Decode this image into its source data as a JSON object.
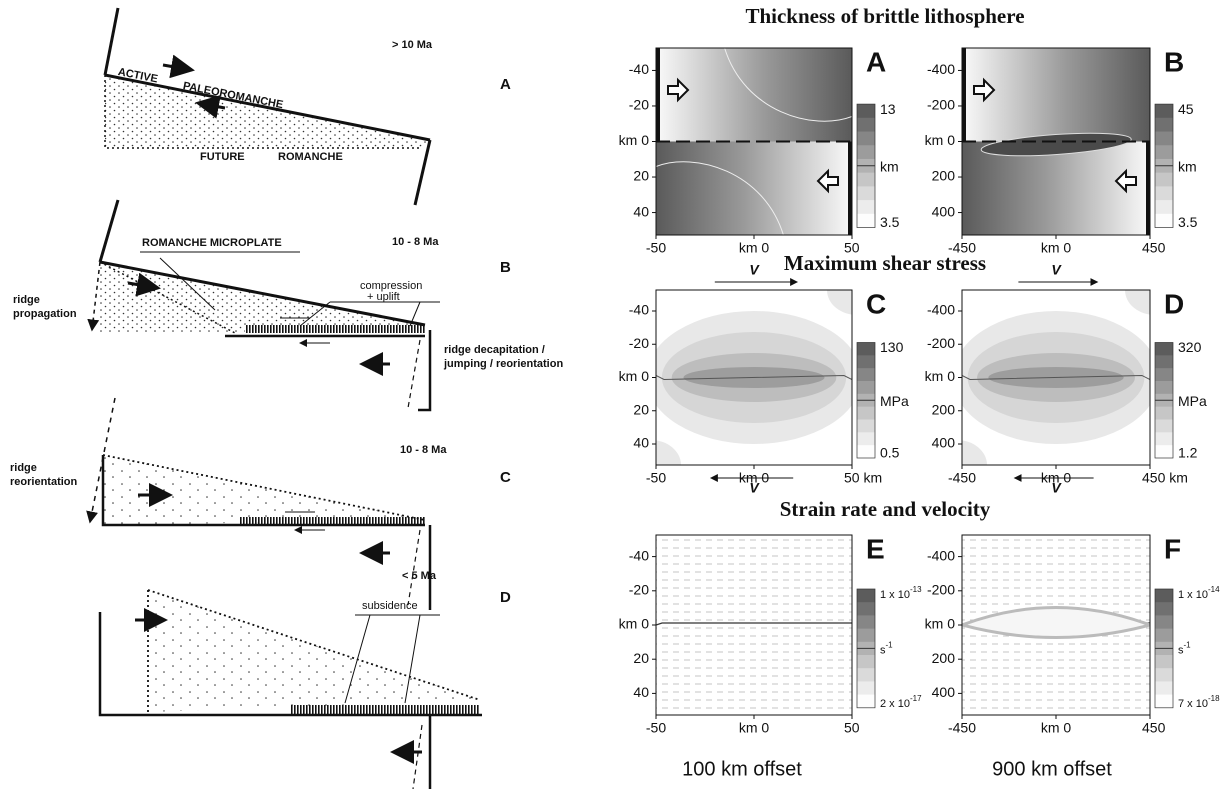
{
  "schematic": {
    "panels": [
      {
        "label": "A",
        "age": "> 10  Ma",
        "notes": [
          "ACTIVE",
          "PALEOROMANCHE",
          "FUTURE",
          "ROMANCHE"
        ]
      },
      {
        "label": "B",
        "age": "10 - 8  Ma",
        "notes": [
          "ROMANCHE MICROPLATE",
          "compression",
          "+ uplift",
          "ridge",
          "propagation",
          "ridge decapitation /",
          "jumping / reorientation"
        ]
      },
      {
        "label": "C",
        "age": "10 - 8  Ma",
        "notes": [
          "ridge",
          "reorientation"
        ]
      },
      {
        "label": "D",
        "age": "< 5  Ma",
        "notes": [
          "subsidence"
        ]
      }
    ]
  },
  "model": {
    "rows": [
      {
        "title": "Thickness of brittle lithosphere"
      },
      {
        "title": "Maximum shear stress"
      },
      {
        "title": "Strain rate and velocity"
      }
    ],
    "arrow_label": "V",
    "plots": [
      {
        "label": "A",
        "yticks": [
          "-40",
          "-20",
          "km 0",
          "20",
          "40"
        ],
        "xticks": [
          "-50",
          "km 0",
          "50"
        ],
        "colorbar": {
          "max": "13",
          "unit": "km",
          "min": "3.5"
        }
      },
      {
        "label": "B",
        "yticks": [
          "-400",
          "-200",
          "km 0",
          "200",
          "400"
        ],
        "xticks": [
          "-450",
          "km 0",
          "450"
        ],
        "colorbar": {
          "max": "45",
          "unit": "km",
          "min": "3.5"
        }
      },
      {
        "label": "C",
        "yticks": [
          "-40",
          "-20",
          "km 0",
          "20",
          "40"
        ],
        "xticks": [
          "-50",
          "km 0",
          "50 km"
        ],
        "colorbar": {
          "max": "130",
          "unit": "MPa",
          "min": "0.5"
        }
      },
      {
        "label": "D",
        "yticks": [
          "-400",
          "-200",
          "km 0",
          "200",
          "400"
        ],
        "xticks": [
          "-450",
          "km 0",
          "450 km"
        ],
        "colorbar": {
          "max": "320",
          "unit": "MPa",
          "min": "1.2"
        }
      },
      {
        "label": "E",
        "yticks": [
          "-40",
          "-20",
          "km 0",
          "20",
          "40"
        ],
        "xticks": [
          "-50",
          "km 0",
          "50"
        ],
        "colorbar": {
          "max": {
            "base": "1 x 10",
            "exp": "-13"
          },
          "unit": {
            "base": "s",
            "exp": "-1"
          },
          "min": {
            "base": "2 x 10",
            "exp": "-17"
          }
        }
      },
      {
        "label": "F",
        "yticks": [
          "-400",
          "-200",
          "km 0",
          "200",
          "400"
        ],
        "xticks": [
          "-450",
          "km 0",
          "450"
        ],
        "colorbar": {
          "max": {
            "base": "1 x 10",
            "exp": "-14"
          },
          "unit": {
            "base": "s",
            "exp": "-1"
          },
          "min": {
            "base": "7 x 10",
            "exp": "-18"
          }
        }
      }
    ],
    "footer": [
      "100 km offset",
      "900 km offset"
    ]
  }
}
